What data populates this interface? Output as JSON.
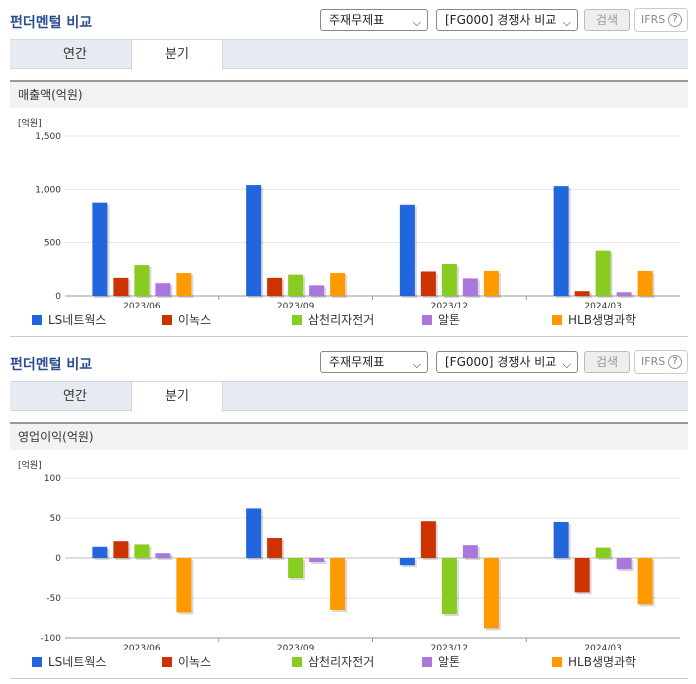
{
  "panels": [
    {
      "title": "펀더멘털 비교",
      "select_statement": "주재무제표",
      "select_compare": "[FG000] 경쟁사 비교",
      "search_label": "검색",
      "ifrs_label": "IFRS",
      "help_glyph": "?",
      "tabs": [
        "연간",
        "분기"
      ],
      "active_tab": "분기",
      "section_title": "매출액(억원)"
    },
    {
      "title": "펀더멘털 비교",
      "select_statement": "주재무제표",
      "select_compare": "[FG000] 경쟁사 비교",
      "search_label": "검색",
      "ifrs_label": "IFRS",
      "help_glyph": "?",
      "tabs": [
        "연간",
        "분기"
      ],
      "active_tab": "분기",
      "section_title": "영업이익(억원)"
    }
  ],
  "colors": {
    "LS네트웍스": "#2266dd",
    "이녹스": "#cc3300",
    "삼천리자전거": "#88cc22",
    "알톤": "#aa77dd",
    "HLB생명과학": "#ff9900"
  },
  "chart_data": [
    {
      "type": "bar",
      "unit_label": "[억원]",
      "categories": [
        "2023/06",
        "2023/09",
        "2023/12",
        "2024/03"
      ],
      "ylim": [
        0,
        1500
      ],
      "yticks": [
        0,
        500,
        1000,
        1500
      ],
      "ytick_labels": [
        "0",
        "500",
        "1,000",
        "1,500"
      ],
      "grid": true,
      "legend": "bottom",
      "series": [
        {
          "name": "LS네트웍스",
          "values": [
            875,
            1040,
            855,
            1030
          ]
        },
        {
          "name": "이녹스",
          "values": [
            170,
            170,
            230,
            45
          ]
        },
        {
          "name": "삼천리자전거",
          "values": [
            290,
            200,
            300,
            425
          ]
        },
        {
          "name": "알톤",
          "values": [
            120,
            100,
            165,
            35
          ]
        },
        {
          "name": "HLB생명과학",
          "values": [
            215,
            215,
            235,
            235
          ]
        }
      ]
    },
    {
      "type": "bar",
      "unit_label": "[억원]",
      "categories": [
        "2023/06",
        "2023/09",
        "2023/12",
        "2024/03"
      ],
      "ylim": [
        -100,
        100
      ],
      "yticks": [
        -100,
        -50,
        0,
        50,
        100
      ],
      "ytick_labels": [
        "-100",
        "-50",
        "0",
        "50",
        "100"
      ],
      "grid": true,
      "legend": "bottom",
      "series": [
        {
          "name": "LS네트웍스",
          "values": [
            14,
            62,
            -9,
            45
          ]
        },
        {
          "name": "이녹스",
          "values": [
            21,
            25,
            46,
            -43
          ]
        },
        {
          "name": "삼천리자전거",
          "values": [
            17,
            -25,
            -70,
            13
          ]
        },
        {
          "name": "알톤",
          "values": [
            6,
            -5,
            16,
            -14
          ]
        },
        {
          "name": "HLB생명과학",
          "values": [
            -68,
            -65,
            -88,
            -58
          ]
        }
      ]
    }
  ]
}
